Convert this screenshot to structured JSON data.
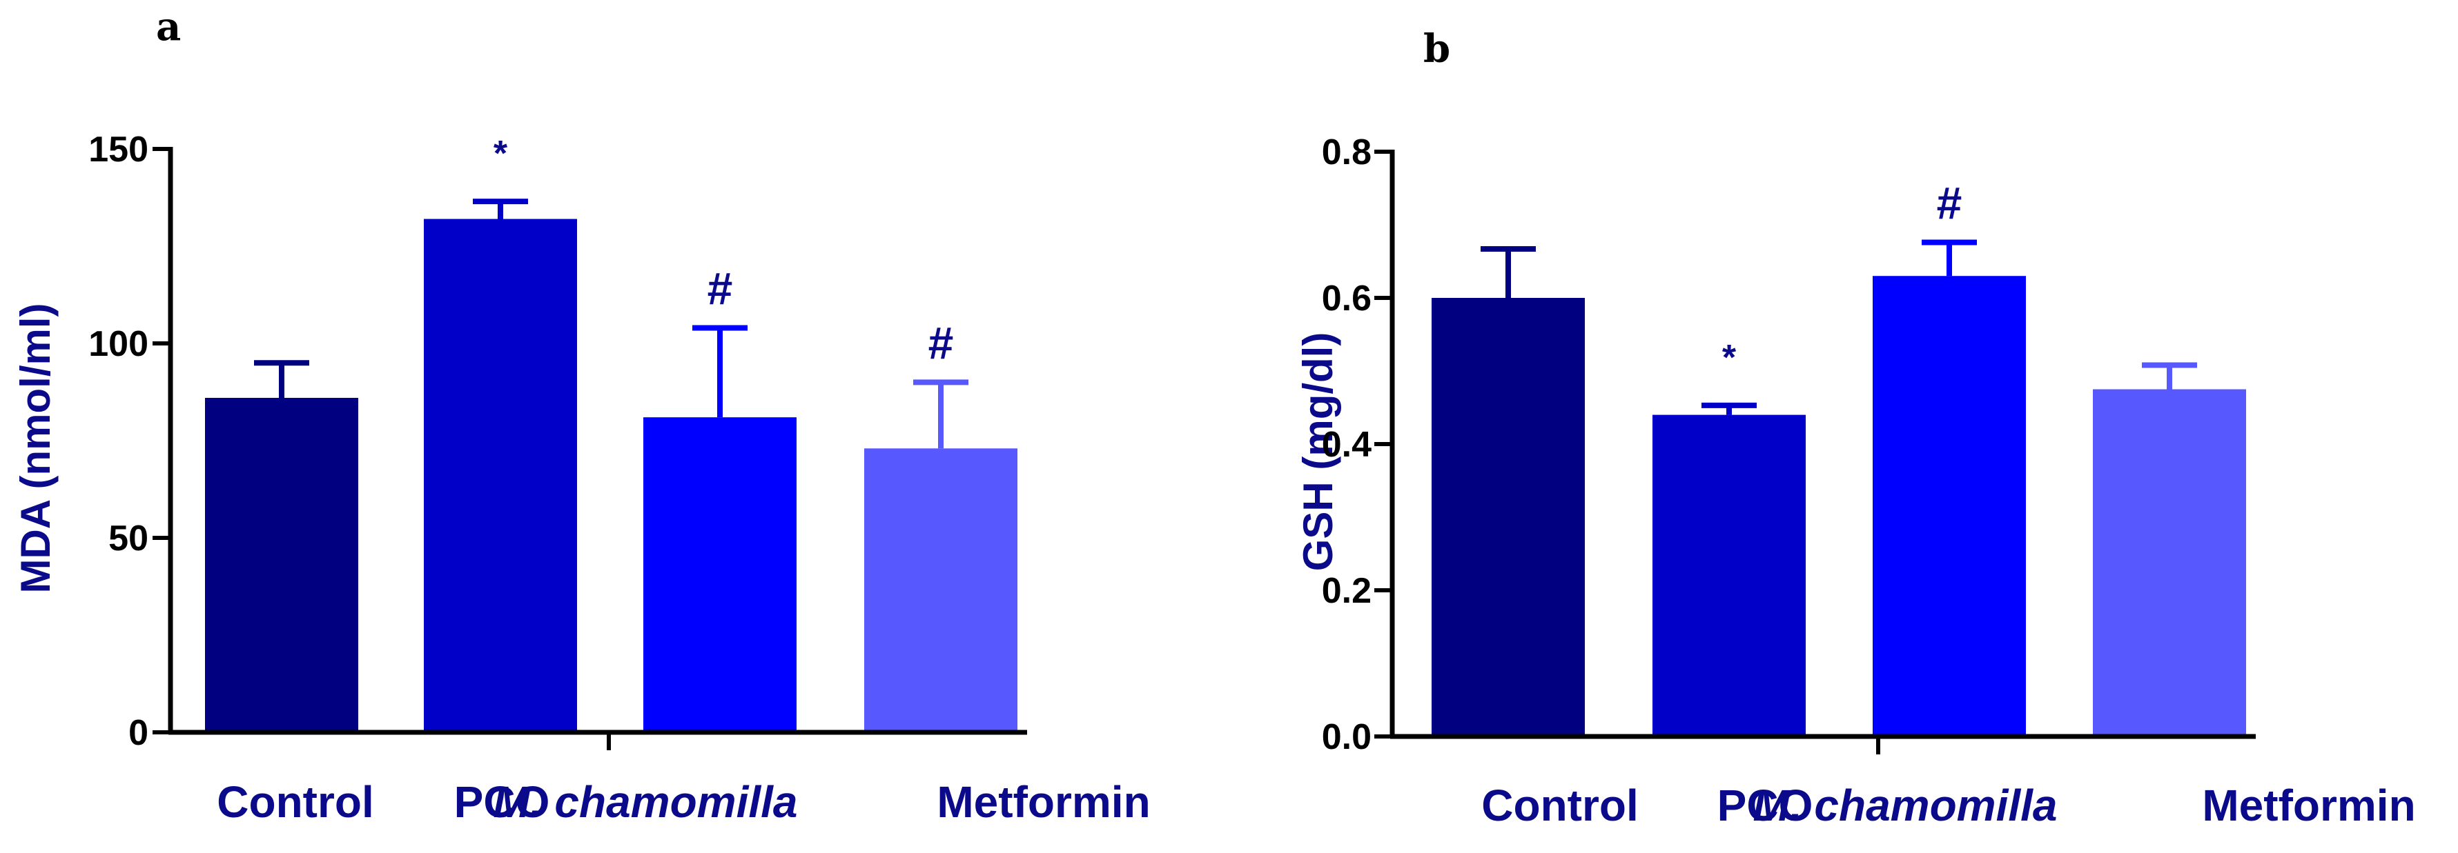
{
  "figure": {
    "title_color": "#0a0a8a",
    "panels": [
      {
        "panel_label": "a"
      },
      {
        "panel_label": "b"
      }
    ]
  },
  "chart_data": [
    {
      "type": "bar",
      "panel": "a",
      "title": "",
      "xlabel": "",
      "ylabel": "MDA (nmol/ml)",
      "ylim": [
        0,
        150
      ],
      "yticks": [
        0,
        50,
        100,
        150
      ],
      "ytick_labels": [
        "0",
        "50",
        "100",
        "150"
      ],
      "categories": [
        "Control",
        "PCO",
        "M. chamomilla",
        "Metformin"
      ],
      "category_italic": [
        false,
        false,
        true,
        false
      ],
      "values": [
        86,
        132,
        81,
        73
      ],
      "errors": [
        9,
        4.5,
        23,
        17
      ],
      "annotations": [
        "",
        "*",
        "#",
        "#"
      ],
      "bar_colors": [
        "#000080",
        "#0000c8",
        "#0000ff",
        "#5858ff"
      ],
      "label_color": "#0a0a8a",
      "grid": false,
      "legend": "none"
    },
    {
      "type": "bar",
      "panel": "b",
      "title": "",
      "xlabel": "",
      "ylabel": "GSH (mg/dl)",
      "ylim": [
        0,
        0.8
      ],
      "yticks": [
        0,
        0.2,
        0.4,
        0.6,
        0.8
      ],
      "ytick_labels": [
        "0.0",
        "0.2",
        "0.4",
        "0.6",
        "0.8"
      ],
      "categories": [
        "Control",
        "PCO",
        "M. chamomilla",
        "Metformin"
      ],
      "category_italic": [
        false,
        false,
        true,
        false
      ],
      "values": [
        0.6,
        0.44,
        0.63,
        0.475
      ],
      "errors": [
        0.067,
        0.013,
        0.046,
        0.033
      ],
      "annotations": [
        "",
        "*",
        "#",
        ""
      ],
      "bar_colors": [
        "#000080",
        "#0000c8",
        "#0000ff",
        "#5858ff"
      ],
      "label_color": "#0a0a8a",
      "grid": false,
      "legend": "none"
    }
  ]
}
